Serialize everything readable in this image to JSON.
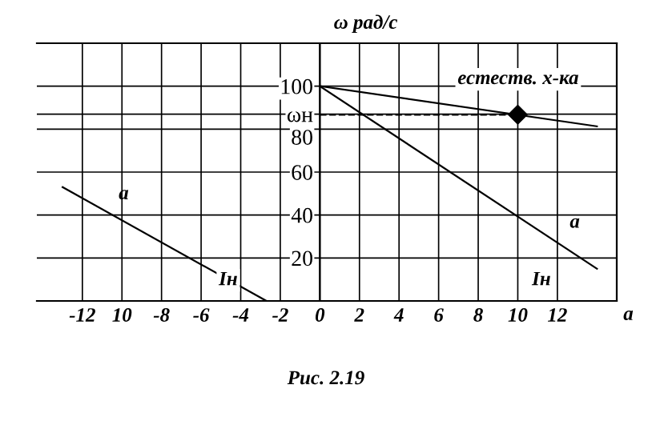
{
  "chart_data": {
    "type": "line",
    "title": "Рис. 2.19",
    "xlabel": "a",
    "ylabel": "ω рад/с",
    "xlim": [
      -14.3,
      15
    ],
    "ylim": [
      0,
      120
    ],
    "xticks": [
      -12,
      {
        "value": -10,
        "label": "10"
      },
      -8,
      -6,
      -4,
      -2,
      0,
      2,
      4,
      6,
      8,
      10,
      12
    ],
    "yticks": [
      20,
      40,
      60,
      80,
      {
        "value": 87,
        "label": "ωн"
      },
      100
    ],
    "grid": true,
    "legend": false,
    "marker": "none",
    "series": [
      {
        "color": "#000000",
        "x": [
          0,
          14
        ],
        "values": [
          100,
          81.3
        ]
      },
      {
        "name": "a",
        "color": "#000000",
        "x": [
          0,
          14
        ],
        "values": [
          100,
          15
        ]
      },
      {
        "name": "a",
        "color": "#000000",
        "x": [
          -13,
          -2.7
        ],
        "values": [
          53,
          0
        ]
      },
      {
        "type": "scatter",
        "color": "#000000",
        "x": [
          10
        ],
        "values": [
          86.7
        ],
        "marker": "diamond"
      }
    ],
    "ref_lines": [
      {
        "axis": "y",
        "value": 86.7,
        "color": "#000000",
        "line_style": "dashed"
      }
    ],
    "annotations": [
      "естеств. х-ка",
      "Iн",
      "Iн"
    ]
  }
}
